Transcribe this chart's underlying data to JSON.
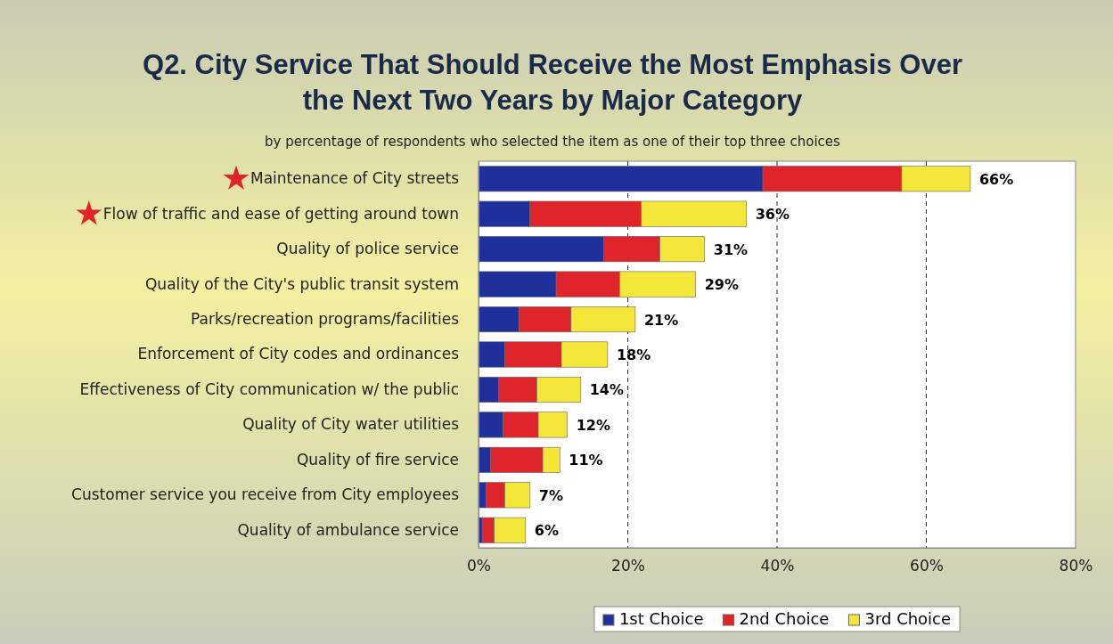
{
  "chart_data": {
    "type": "bar",
    "orientation": "horizontal",
    "stacked": true,
    "title": "Q2. City Service That Should Receive the Most Emphasis Over the Next Two Years by Major Category",
    "subtitle": "by percentage of respondents who selected the item as one of their top three choices",
    "categories": [
      "Maintenance of City streets",
      "Flow of traffic and ease of getting around town",
      "Quality of police service",
      "Quality of the City's public transit system",
      "Parks/recreation programs/facilities",
      "Enforcement of City codes and ordinances",
      "Effectiveness of City communication w/ the public",
      "Quality of City water utilities",
      "Quality of fire service",
      "Customer service you receive from City employees",
      "Quality of ambulance service"
    ],
    "series": [
      {
        "name": "1st Choice",
        "color": "#1f2f9c",
        "values": [
          38.1,
          6.9,
          16.8,
          10.4,
          5.4,
          3.5,
          2.7,
          3.3,
          1.6,
          1,
          0.5
        ]
      },
      {
        "name": "2nd Choice",
        "color": "#e0242b",
        "values": [
          18.6,
          14.9,
          7.5,
          8.5,
          7,
          7.6,
          5.1,
          4.7,
          7,
          2.5,
          1.6
        ]
      },
      {
        "name": "3rd Choice",
        "color": "#f5e63a",
        "values": [
          9.2,
          14.1,
          6,
          10.2,
          8.6,
          6.2,
          5.9,
          3.9,
          2.3,
          3.4,
          4.2
        ]
      }
    ],
    "totals": [
      "66%",
      "36%",
      "31%",
      "29%",
      "21%",
      "18%",
      "14%",
      "12%",
      "11%",
      "7%",
      "6%"
    ],
    "xlim": [
      0,
      80
    ],
    "xticks": [
      {
        "value": 0,
        "label": "0%"
      },
      {
        "value": 20,
        "label": "20%"
      },
      {
        "value": 40,
        "label": "40%"
      },
      {
        "value": 60,
        "label": "60%"
      },
      {
        "value": 80,
        "label": "80%"
      }
    ],
    "grid": "x",
    "legend": "bottom"
  }
}
